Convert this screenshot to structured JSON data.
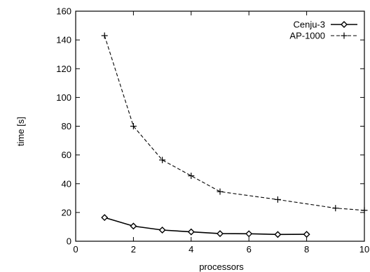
{
  "chart_data": {
    "type": "line",
    "xlabel": "processors",
    "ylabel": "time [s]",
    "xlim": [
      0,
      10
    ],
    "ylim": [
      0,
      160
    ],
    "xticks": [
      0,
      2,
      4,
      6,
      8,
      10
    ],
    "yticks": [
      0,
      20,
      40,
      60,
      80,
      100,
      120,
      140,
      160
    ],
    "grid": false,
    "legend_position": "top-right",
    "series": [
      {
        "name": "Cenju-3",
        "marker": "diamond",
        "line_style": "solid",
        "color": "#000000",
        "points": [
          [
            1,
            16.5
          ],
          [
            2,
            10.5
          ],
          [
            3,
            7.8
          ],
          [
            4,
            6.5
          ],
          [
            5,
            5.3
          ],
          [
            6,
            5.2
          ],
          [
            7,
            4.7
          ],
          [
            8,
            4.8
          ]
        ]
      },
      {
        "name": "AP-1000",
        "marker": "plus",
        "line_style": "dashed",
        "color": "#000000",
        "points": [
          [
            1,
            143
          ],
          [
            2,
            80
          ],
          [
            3,
            56.5
          ],
          [
            4,
            45.5
          ],
          [
            5,
            34.5
          ],
          [
            7,
            29
          ],
          [
            9,
            23
          ],
          [
            10,
            21.5
          ]
        ]
      }
    ]
  }
}
